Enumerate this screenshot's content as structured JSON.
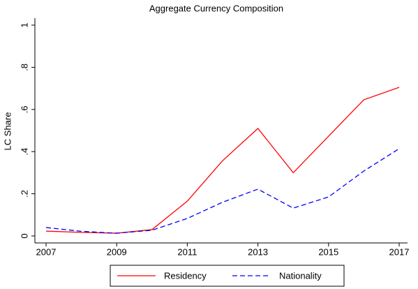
{
  "chart_data": {
    "type": "line",
    "title": "Aggregate Currency Composition",
    "ylabel": "LC Share",
    "x": [
      2007,
      2008,
      2009,
      2010,
      2011,
      2012,
      2013,
      2014,
      2015,
      2016,
      2017
    ],
    "series": [
      {
        "name": "Residency",
        "color": "#ff0000",
        "style": "solid",
        "values": [
          0.023,
          0.017,
          0.013,
          0.03,
          0.165,
          0.357,
          0.51,
          0.3,
          0.473,
          0.646,
          0.705
        ]
      },
      {
        "name": "Nationality",
        "color": "#0000ff",
        "style": "dashed",
        "values": [
          0.04,
          0.022,
          0.013,
          0.027,
          0.083,
          0.16,
          0.222,
          0.132,
          0.185,
          0.308,
          0.414
        ]
      }
    ],
    "xlim": [
      2007,
      2017
    ],
    "xticks": [
      2007,
      2009,
      2011,
      2013,
      2015,
      2017
    ],
    "ylim": [
      0,
      1
    ],
    "yticks": [
      0,
      {
        "value": 0.2,
        "label": ".2"
      },
      {
        "value": 0.4,
        "label": ".4"
      },
      {
        "value": 0.6,
        "label": ".6"
      },
      {
        "value": 0.8,
        "label": ".8"
      },
      1
    ],
    "legend": "bottom"
  }
}
